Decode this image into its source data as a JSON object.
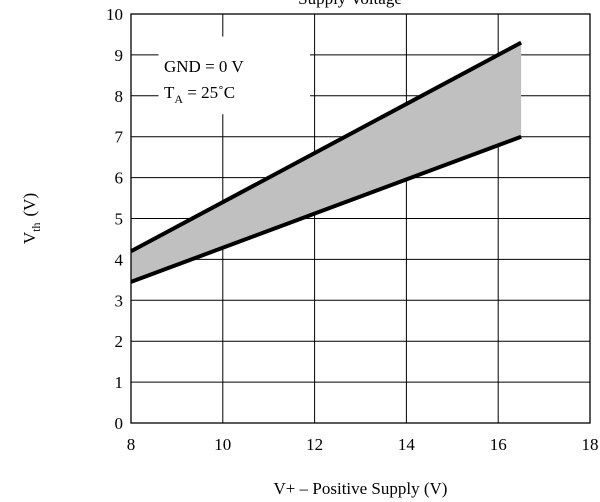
{
  "chart_data": {
    "type": "line",
    "title": "Supply Voltage",
    "xlabel": {
      "main": "V+ – Positive Supply (V)"
    },
    "ylabel": {
      "main": "V",
      "sub": "th",
      "unit": "(V)"
    },
    "xlim": [
      8,
      18
    ],
    "ylim": [
      0,
      10
    ],
    "x_ticks": [
      8,
      10,
      12,
      14,
      16,
      18
    ],
    "y_ticks": [
      0,
      1,
      2,
      3,
      4,
      5,
      6,
      7,
      8,
      9,
      10
    ],
    "grid": true,
    "series": [
      {
        "x": [
          8,
          16.5
        ],
        "y": [
          4.2,
          9.3
        ]
      },
      {
        "x": [
          8,
          16.5
        ],
        "y": [
          3.45,
          7.0
        ]
      }
    ],
    "shaded_band_between_series": true,
    "annotations": [
      {
        "label": "GND = 0 V"
      },
      {
        "main": "T",
        "sub": "A",
        "rest": " = 25˚C"
      }
    ],
    "colors": {
      "lines": "#000000",
      "band": "#c0c0c0",
      "grid": "#000000"
    }
  }
}
